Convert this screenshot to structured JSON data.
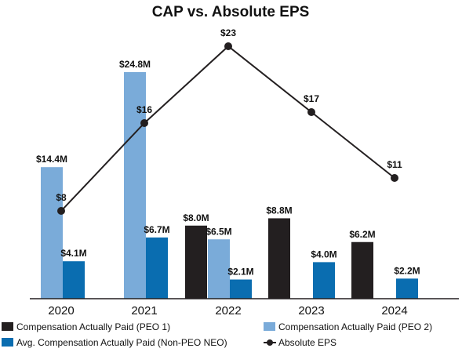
{
  "chart_data": {
    "type": "bar",
    "title": "CAP vs. Absolute EPS",
    "categories": [
      "2020",
      "2021",
      "2022",
      "2023",
      "2024"
    ],
    "ylim": [
      0,
      26
    ],
    "eps_ylim": [
      0,
      26
    ],
    "series": [
      {
        "name": "Compensation Actually Paid (PEO 1)",
        "color": "#231f20",
        "values": [
          null,
          null,
          8.0,
          8.8,
          6.2
        ],
        "labels": [
          null,
          null,
          "$8.0M",
          "$8.8M",
          "$6.2M"
        ]
      },
      {
        "name": "Compensation Actually Paid (PEO 2)",
        "color": "#7aabd9",
        "values": [
          14.4,
          24.8,
          6.5,
          null,
          null
        ],
        "labels": [
          "$14.4M",
          "$24.8M",
          "$6.5M",
          null,
          null
        ]
      },
      {
        "name": "Avg. Compensation Actually Paid (Non-PEO NEO)",
        "color": "#0a6db0",
        "values": [
          4.1,
          6.7,
          2.1,
          4.0,
          2.2
        ],
        "labels": [
          "$4.1M",
          "$6.7M",
          "$2.1M",
          "$4.0M",
          "$2.2M"
        ]
      },
      {
        "name": "Absolute EPS",
        "type": "line",
        "color": "#231f20",
        "values": [
          8,
          16,
          23,
          17,
          11
        ],
        "labels": [
          "$8",
          "$16",
          "$23",
          "$17",
          "$11"
        ]
      }
    ],
    "legend": {
      "placement": "bottom",
      "items": [
        "Compensation Actually Paid (PEO 1)",
        "Compensation Actually Paid (PEO 2)",
        "Avg. Compensation Actually Paid (Non-PEO NEO)",
        "Absolute EPS"
      ]
    },
    "grid": false
  }
}
